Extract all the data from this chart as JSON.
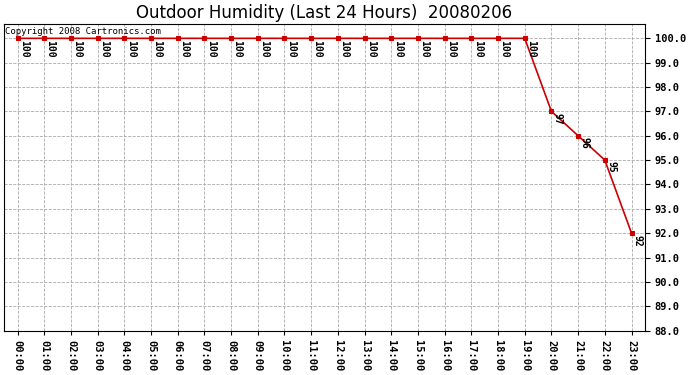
{
  "title": "Outdoor Humidity (Last 24 Hours)  20080206",
  "copyright_text": "Copyright 2008 Cartronics.com",
  "line_color": "#cc0000",
  "marker_color": "#cc0000",
  "bg_color": "#ffffff",
  "grid_color": "#aaaaaa",
  "x_labels": [
    "00:00",
    "01:00",
    "02:00",
    "03:00",
    "04:00",
    "05:00",
    "06:00",
    "07:00",
    "08:00",
    "09:00",
    "10:00",
    "11:00",
    "12:00",
    "13:00",
    "14:00",
    "15:00",
    "16:00",
    "17:00",
    "18:00",
    "19:00",
    "20:00",
    "21:00",
    "22:00",
    "23:00"
  ],
  "x_values": [
    0,
    1,
    2,
    3,
    4,
    5,
    6,
    7,
    8,
    9,
    10,
    11,
    12,
    13,
    14,
    15,
    16,
    17,
    18,
    19,
    20,
    21,
    22,
    23
  ],
  "y_values": [
    100,
    100,
    100,
    100,
    100,
    100,
    100,
    100,
    100,
    100,
    100,
    100,
    100,
    100,
    100,
    100,
    100,
    100,
    100,
    100,
    97,
    96,
    95,
    92
  ],
  "ylim_min": 88.0,
  "ylim_max": 100.6,
  "ytick_min": 88.0,
  "ytick_max": 100.0,
  "ytick_step": 1.0,
  "annotate_indices": [
    0,
    1,
    2,
    3,
    4,
    5,
    6,
    7,
    8,
    9,
    10,
    11,
    12,
    13,
    14,
    15,
    16,
    17,
    18,
    19,
    20,
    21,
    22,
    23
  ],
  "annotation_values": [
    100,
    100,
    100,
    100,
    100,
    100,
    100,
    100,
    100,
    100,
    100,
    100,
    100,
    100,
    100,
    100,
    100,
    100,
    100,
    100,
    97,
    96,
    95,
    92
  ],
  "title_fontsize": 12,
  "axis_fontsize": 7.5,
  "annot_fontsize": 7
}
